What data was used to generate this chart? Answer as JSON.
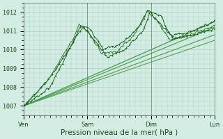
{
  "xlabel": "Pression niveau de la mer( hPa )",
  "bg_color": "#d4ede4",
  "grid_color": "#aacfbf",
  "line_color_dark": "#1a5c1a",
  "line_color_mid": "#2e7a2e",
  "line_color_light": "#4a9a4a",
  "ylim": [
    1006.5,
    1012.5
  ],
  "day_labels": [
    "Ven",
    "Sam",
    "Dim",
    "Lun"
  ],
  "day_positions": [
    0,
    72,
    144,
    216
  ],
  "total_hours": 216,
  "tick_fontsize": 6,
  "label_fontsize": 7.5
}
